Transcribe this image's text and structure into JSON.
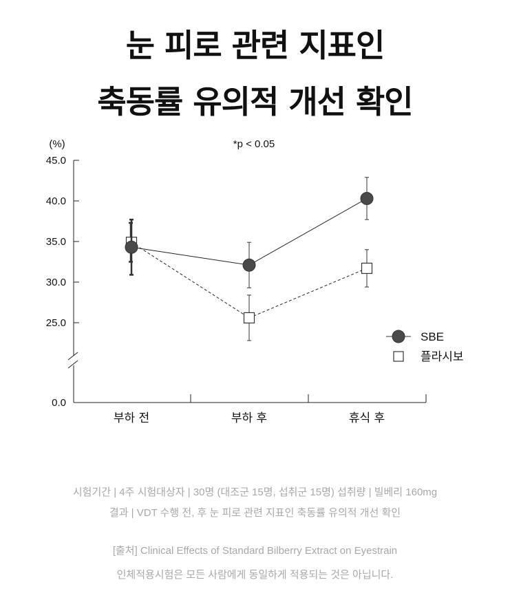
{
  "title_line1": "눈 피로 관련 지표인",
  "title_line2": "축동률 유의적 개선 확인",
  "chart_data": {
    "type": "line",
    "unit_label": "(%)",
    "annotation": "*p < 0.05",
    "categories": [
      "부하 전",
      "부하 후",
      "휴식 후"
    ],
    "y_ticks": [
      "45.0",
      "40.0",
      "35.0",
      "30.0",
      "25.0",
      "0.0"
    ],
    "ylim": [
      0,
      45
    ],
    "axis_break": true,
    "grid": false,
    "legend_position": "right",
    "series": [
      {
        "name": "SBE",
        "marker": "filled-circle",
        "line": "solid",
        "color": "#4a4a4a",
        "values": [
          34.3,
          32.1,
          40.3
        ],
        "error": [
          3.4,
          2.8,
          2.6
        ]
      },
      {
        "name": "플라시보",
        "marker": "open-square",
        "line": "dashed",
        "color": "#333333",
        "values": [
          34.9,
          25.6,
          31.7
        ],
        "error": [
          2.4,
          2.8,
          2.3
        ]
      }
    ]
  },
  "footnote": {
    "line1": "시험기간  |  4주 시험대상자  |  30명 (대조군 15명, 섭취군 15명) 섭취량  |  빌베리 160mg",
    "line2": "결과  | VDT 수행 전, 후 눈 피로 관련 지표인 축동률 유의적 개선 확인",
    "source": "[출처] Clinical Effects of Standard Bilberry Extract on Eyestrain",
    "disclaimer": "인체적용시험은 모든 사람에게 동일하게 적용되는 것은 아닙니다."
  }
}
